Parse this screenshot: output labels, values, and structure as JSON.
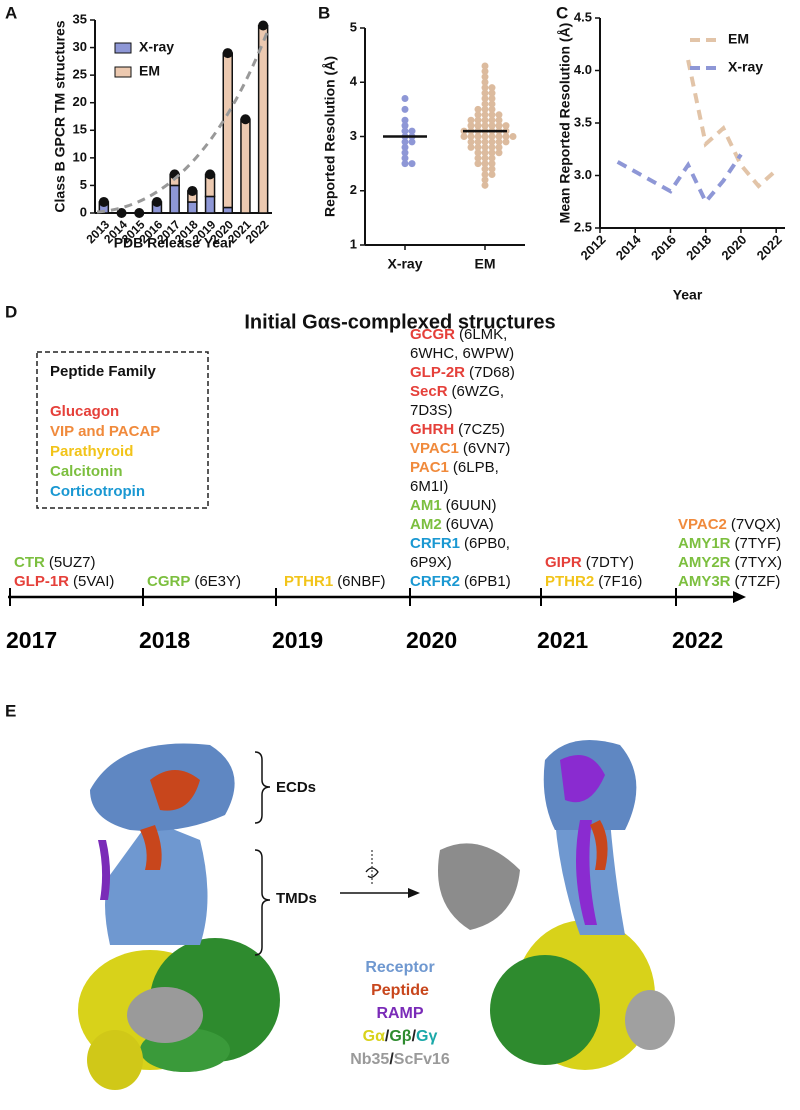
{
  "panels": {
    "a": "A",
    "b": "B",
    "c": "C",
    "d": "D",
    "e": "E"
  },
  "chart_data": [
    {
      "type": "bar",
      "stacked": true,
      "categories": [
        "2013",
        "2014",
        "2015",
        "2016",
        "2017",
        "2018",
        "2019",
        "2020",
        "2021",
        "2022"
      ],
      "series": [
        {
          "name": "X-ray",
          "color": "#8e97d6",
          "values": [
            2,
            0,
            0,
            2,
            5,
            2,
            3,
            1,
            0,
            0
          ]
        },
        {
          "name": "EM",
          "color": "#ecc9b0",
          "values": [
            0,
            0,
            0,
            0,
            2,
            2,
            4,
            28,
            17,
            34
          ]
        }
      ],
      "ylim": [
        0,
        35
      ],
      "yticks": [
        0,
        5,
        10,
        15,
        20,
        25,
        30,
        35
      ],
      "y_label": "Class B GPCR TM structures",
      "x_label": "PDB Release Year",
      "legend": "upper left"
    },
    {
      "type": "strip",
      "categories": [
        "X-ray",
        "EM"
      ],
      "colors": [
        "#8e97d6",
        "#dcbb9e"
      ],
      "groups": [
        [
          3.7,
          3.5,
          3.3,
          3.2,
          3.1,
          3.1,
          3.0,
          3.0,
          2.9,
          2.9,
          2.8,
          2.7,
          2.6,
          2.5,
          2.5
        ],
        [
          4.3,
          4.2,
          4.1,
          4.0,
          3.9,
          3.9,
          3.8,
          3.8,
          3.7,
          3.7,
          3.6,
          3.6,
          3.5,
          3.5,
          3.5,
          3.4,
          3.4,
          3.4,
          3.4,
          3.3,
          3.3,
          3.3,
          3.3,
          3.3,
          3.2,
          3.2,
          3.2,
          3.2,
          3.2,
          3.2,
          3.1,
          3.1,
          3.1,
          3.1,
          3.1,
          3.1,
          3.1,
          3.0,
          3.0,
          3.0,
          3.0,
          3.0,
          3.0,
          3.0,
          3.0,
          2.9,
          2.9,
          2.9,
          2.9,
          2.9,
          2.9,
          2.8,
          2.8,
          2.8,
          2.8,
          2.8,
          2.7,
          2.7,
          2.7,
          2.7,
          2.6,
          2.6,
          2.6,
          2.5,
          2.5,
          2.5,
          2.4,
          2.4,
          2.3,
          2.3,
          2.2,
          2.1
        ]
      ],
      "means": [
        3.0,
        3.1
      ],
      "ylim": [
        1,
        5
      ],
      "yticks": [
        1,
        2,
        3,
        4,
        5
      ],
      "y_label": "Reported Resolution (Å)"
    },
    {
      "type": "line",
      "series": [
        {
          "name": "EM",
          "color": "#e2c4a8",
          "x": [
            2017,
            2018,
            2019,
            2020,
            2021,
            2022
          ],
          "values": [
            4.1,
            3.3,
            3.45,
            3.1,
            2.9,
            3.05
          ]
        },
        {
          "name": "X-ray",
          "color": "#8e97d6",
          "x": [
            2013,
            2016,
            2017,
            2018,
            2019,
            2020
          ],
          "values": [
            3.13,
            2.85,
            3.1,
            2.75,
            2.95,
            3.2
          ]
        }
      ],
      "xlim": [
        2012,
        2022.5
      ],
      "xticks": [
        2012,
        2014,
        2016,
        2018,
        2020,
        2022
      ],
      "ylim": [
        2.5,
        4.5
      ],
      "yticks": [
        2.5,
        {
          "value": 3,
          "label": "3.0"
        },
        3.5,
        {
          "value": 4,
          "label": "4.0"
        },
        4.5
      ],
      "y_label": "Mean Reported Resolution (Å)",
      "x_label": "Year",
      "legend": "upper right"
    }
  ],
  "timeline": {
    "title": "Initial Gαs-complexed structures",
    "legend_title": "Peptide Family",
    "families": [
      {
        "name": "Glucagon",
        "color": "#e5403a"
      },
      {
        "name": "VIP and PACAP",
        "color": "#f08a3c"
      },
      {
        "name": "Parathyroid",
        "color": "#f2c41a"
      },
      {
        "name": "Calcitonin",
        "color": "#7cbf3f"
      },
      {
        "name": "Corticotropin",
        "color": "#1a98d2"
      }
    ],
    "years": [
      {
        "year": "2017",
        "entries": [
          {
            "name": "CTR",
            "codes": "(5UZ7)",
            "color": "#7cbf3f"
          },
          {
            "name": "GLP-1R",
            "codes": "(5VAI)",
            "color": "#e5403a"
          }
        ]
      },
      {
        "year": "2018",
        "entries": [
          {
            "name": "CGRP",
            "codes": "(6E3Y)",
            "color": "#7cbf3f"
          }
        ]
      },
      {
        "year": "2019",
        "entries": [
          {
            "name": "PTHR1",
            "codes": "(6NBF)",
            "color": "#f2c41a"
          }
        ]
      },
      {
        "year": "2020",
        "entries": [
          {
            "name": "GCGR",
            "codes": "(6LMK, 6WHC, 6WPW)",
            "color": "#e5403a"
          },
          {
            "name": "GLP-2R",
            "codes": "(7D68)",
            "color": "#e5403a"
          },
          {
            "name": "SecR",
            "codes": "(6WZG, 7D3S)",
            "color": "#e5403a"
          },
          {
            "name": "GHRH",
            "codes": "(7CZ5)",
            "color": "#e5403a"
          },
          {
            "name": "VPAC1",
            "codes": "(6VN7)",
            "color": "#f08a3c"
          },
          {
            "name": "PAC1",
            "codes": "(6LPB, 6M1I)",
            "color": "#f08a3c"
          },
          {
            "name": "AM1",
            "codes": "(6UUN)",
            "color": "#7cbf3f"
          },
          {
            "name": "AM2",
            "codes": "(6UVA)",
            "color": "#7cbf3f"
          },
          {
            "name": "CRFR1",
            "codes": "(6PB0, 6P9X)",
            "color": "#1a98d2"
          },
          {
            "name": "CRFR2",
            "codes": "(6PB1)",
            "color": "#1a98d2"
          }
        ]
      },
      {
        "year": "2021",
        "entries": [
          {
            "name": "GIPR",
            "codes": "(7DTY)",
            "color": "#e5403a"
          },
          {
            "name": "PTHR2",
            "codes": "(7F16)",
            "color": "#f2c41a"
          }
        ]
      },
      {
        "year": "2022",
        "entries": [
          {
            "name": "VPAC2",
            "codes": "(7VQX)",
            "color": "#f08a3c"
          },
          {
            "name": "AMY1R",
            "codes": "(7TYF)",
            "color": "#7cbf3f"
          },
          {
            "name": "AMY2R",
            "codes": "(7TYX)",
            "color": "#7cbf3f"
          },
          {
            "name": "AMY3R",
            "codes": "(7TZF)",
            "color": "#7cbf3f"
          }
        ]
      }
    ]
  },
  "structure": {
    "ecd": "ECDs",
    "tmd": "TMDs",
    "legend": [
      [
        {
          "text": "Receptor",
          "color": "#6f98d0"
        }
      ],
      [
        {
          "text": "Peptide",
          "color": "#c8461c"
        }
      ],
      [
        {
          "text": "RAMP",
          "color": "#7a2bb8"
        }
      ],
      [
        {
          "text": "Gα",
          "color": "#d8d21a"
        },
        {
          "text": "/",
          "color": "#222222"
        },
        {
          "text": "Gβ",
          "color": "#2e8b2e"
        },
        {
          "text": "/",
          "color": "#222222"
        },
        {
          "text": "Gγ",
          "color": "#1aa8a8"
        }
      ],
      [
        {
          "text": "Nb35",
          "color": "#9a9a9a"
        },
        {
          "text": "/",
          "color": "#222222"
        },
        {
          "text": "ScFv16",
          "color": "#9a9a9a"
        }
      ]
    ]
  }
}
